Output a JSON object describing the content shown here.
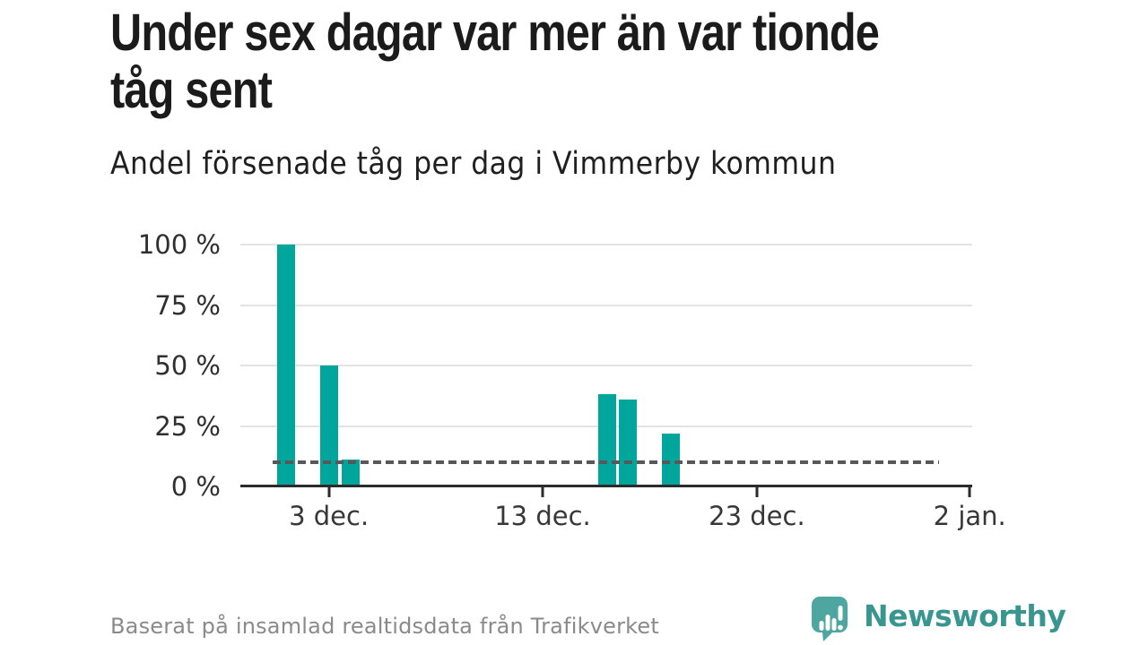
{
  "header": {
    "title": "Under sex dagar var mer än var tionde tåg sent",
    "title_lines": [
      "Under sex dagar var mer än var tionde",
      "tåg sent"
    ],
    "subtitle": "Andel försenade tåg per dag i Vimmerby kommun"
  },
  "footer": {
    "source": "Baserat på insamlad realtidsdata från Trafikverket",
    "brand": "Newsworthy"
  },
  "colors": {
    "bar": "#00a69c",
    "axis": "#2b2b2b",
    "gridline": "#e3e3e3",
    "reference_dash": "#58585a",
    "brand_teal": "#38958f",
    "logo_mark_teal": "#4ea6a1",
    "title_text": "#1b1b1b",
    "muted_text": "#8a8a8a"
  },
  "chart_data": {
    "type": "bar",
    "title": "Under sex dagar var mer än var tionde tåg sent",
    "subtitle": "Andel försenade tåg per dag i Vimmerby kommun",
    "source_note": "Baserat på insamlad realtidsdata från Trafikverket",
    "unit": "%",
    "categories": [
      "1 dec.",
      "3 dec.",
      "4 dec.",
      "16 dec.",
      "17 dec.",
      "19 dec."
    ],
    "values": [
      100,
      50,
      11,
      38,
      36,
      22
    ],
    "ylim": [
      0,
      100
    ],
    "grid": true,
    "legend_position": "none",
    "bar_width_pct": 2.45,
    "bars": [
      {
        "category": "1 dec.",
        "value": 100,
        "left_pct": 5.03
      },
      {
        "category": "3 dec.",
        "value": 50,
        "left_pct": 10.87
      },
      {
        "category": "4 dec.",
        "value": 11,
        "left_pct": 13.79
      },
      {
        "category": "16 dec.",
        "value": 38,
        "left_pct": 48.84
      },
      {
        "category": "17 dec.",
        "value": 36,
        "left_pct": 51.75
      },
      {
        "category": "19 dec.",
        "value": 22,
        "left_pct": 57.6
      }
    ],
    "y_ticks": [
      {
        "value": 0,
        "label": "0 %"
      },
      {
        "value": 25,
        "label": "25 %"
      },
      {
        "value": 50,
        "label": "50 %"
      },
      {
        "value": 75,
        "label": "75 %"
      },
      {
        "value": 100,
        "label": "100 %"
      }
    ],
    "x_ticks": [
      {
        "label": "3 dec.",
        "pos_pct": 12.09
      },
      {
        "label": "13 dec.",
        "pos_pct": 41.3
      },
      {
        "label": "23 dec.",
        "pos_pct": 70.58
      },
      {
        "label": "2 jan.",
        "pos_pct": 99.66
      }
    ],
    "reference_line": {
      "value": 10,
      "style": "dashed",
      "start_pct": 4.41,
      "end_pct": 95.5
    }
  }
}
